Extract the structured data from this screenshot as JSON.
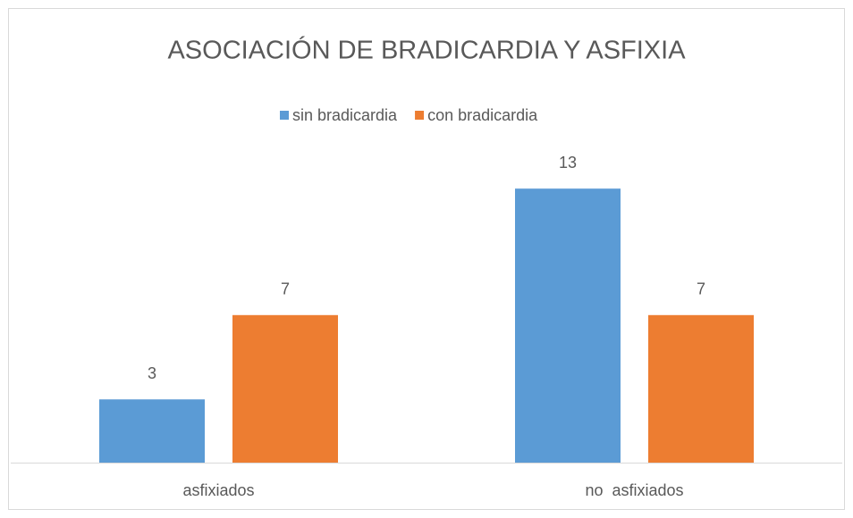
{
  "chart_data": {
    "type": "bar",
    "title": "ASOCIACIÓN DE BRADICARDIA Y ASFIXIA",
    "categories": [
      "asfixiados",
      "no  asfixiados"
    ],
    "series": [
      {
        "name": "sin bradicardia",
        "color": "#5b9bd5",
        "values": [
          3,
          13
        ]
      },
      {
        "name": "con bradicardia",
        "color": "#ed7d31",
        "values": [
          7,
          7
        ]
      }
    ],
    "legend": "top",
    "grid": false
  }
}
